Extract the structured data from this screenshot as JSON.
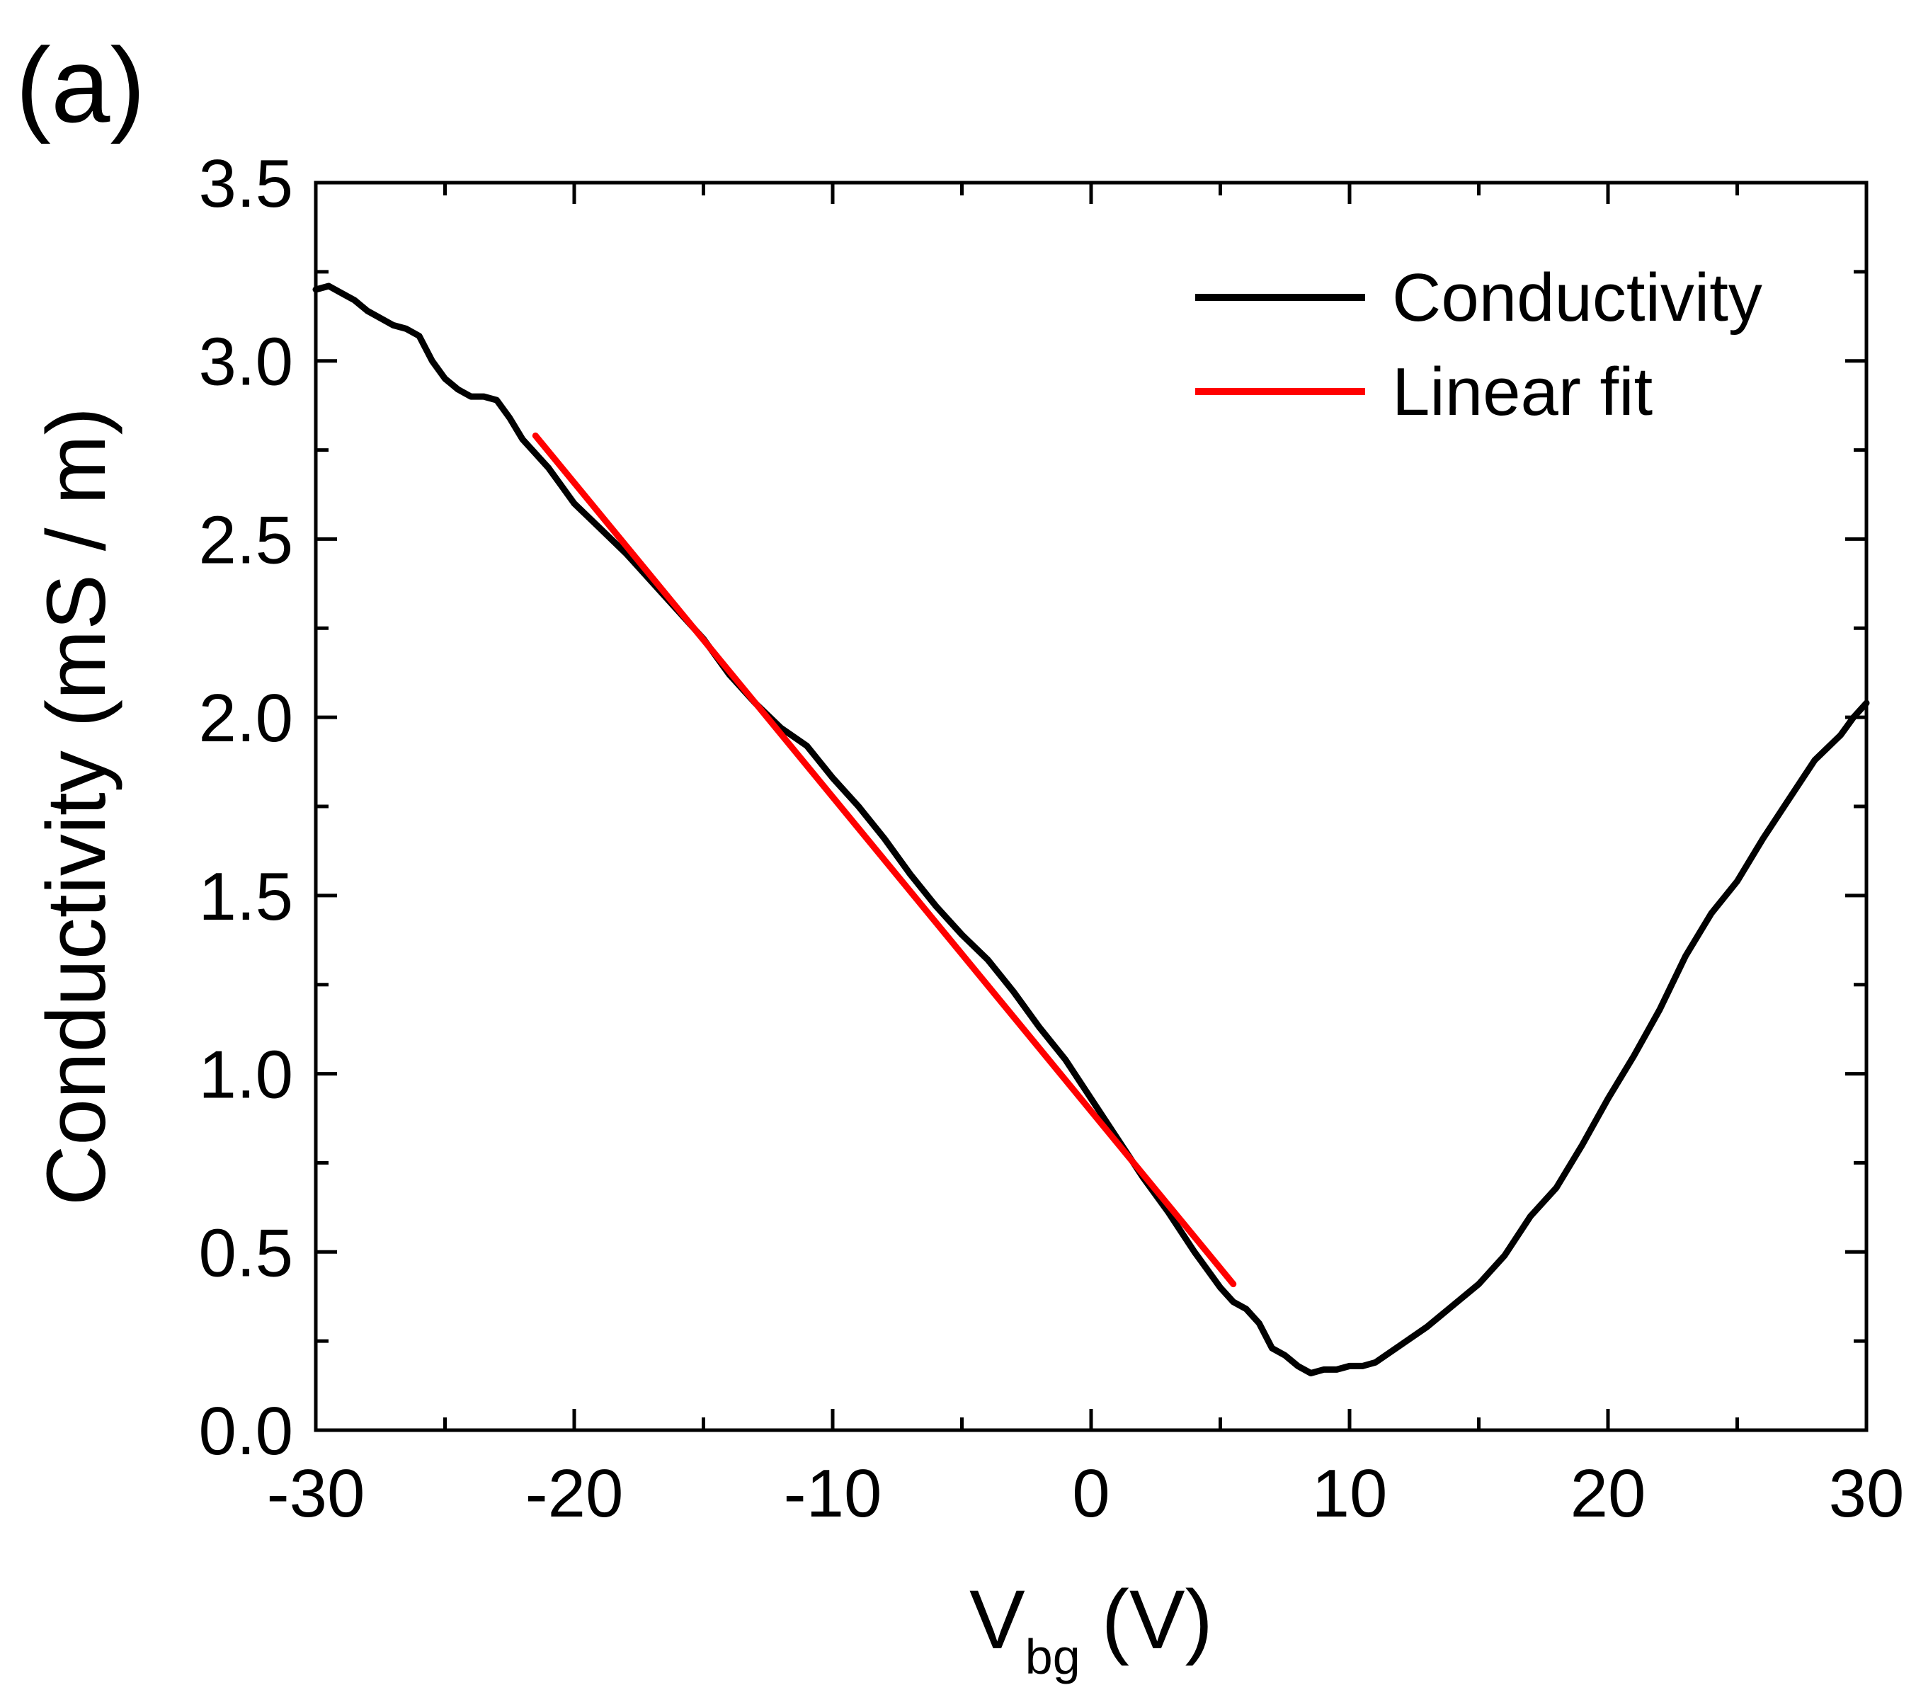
{
  "panel_label": "(a)",
  "chart_data": {
    "type": "line",
    "title": "",
    "xlabel": "V",
    "xlabel_subscript": "bg",
    "xlabel_unit": "(V)",
    "ylabel": "Conductivity (mS / m)",
    "xlim": [
      -30,
      30
    ],
    "ylim": [
      0.0,
      3.5
    ],
    "xticks": [
      -30,
      -20,
      -10,
      0,
      10,
      20,
      30
    ],
    "xtick_labels": [
      "-30",
      "-20",
      "-10",
      "0",
      "10",
      "20",
      "30"
    ],
    "yticks": [
      0.0,
      0.5,
      1.0,
      1.5,
      2.0,
      2.5,
      3.0,
      3.5
    ],
    "ytick_labels": [
      "0.0",
      "0.5",
      "1.0",
      "1.5",
      "2.0",
      "2.5",
      "3.0",
      "3.5"
    ],
    "grid": false,
    "legend_position": "top-right",
    "series": [
      {
        "name": "Conductivity",
        "color": "#000000",
        "x": [
          -30,
          -29.5,
          -29,
          -28.5,
          -28,
          -27.5,
          -27,
          -26.5,
          -26,
          -25.5,
          -25,
          -24.5,
          -24,
          -23.5,
          -23,
          -22.5,
          -22,
          -21.5,
          -21,
          -20.5,
          -20,
          -19,
          -18,
          -17,
          -16,
          -15,
          -14,
          -13,
          -12,
          -11,
          -10,
          -9,
          -8,
          -7,
          -6,
          -5,
          -4,
          -3,
          -2,
          -1,
          0,
          1,
          2,
          3,
          4,
          5,
          5.5,
          6,
          6.5,
          7,
          7.5,
          8,
          8.5,
          9,
          9.5,
          10,
          10.5,
          11,
          12,
          13,
          14,
          15,
          16,
          17,
          18,
          19,
          20,
          21,
          22,
          23,
          24,
          25,
          26,
          27,
          28,
          29,
          29.5,
          30
        ],
        "y": [
          3.2,
          3.21,
          3.19,
          3.17,
          3.14,
          3.12,
          3.1,
          3.09,
          3.07,
          3.0,
          2.95,
          2.92,
          2.9,
          2.9,
          2.89,
          2.84,
          2.78,
          2.74,
          2.7,
          2.65,
          2.6,
          2.53,
          2.46,
          2.38,
          2.3,
          2.22,
          2.12,
          2.04,
          1.97,
          1.92,
          1.83,
          1.75,
          1.66,
          1.56,
          1.47,
          1.39,
          1.32,
          1.23,
          1.13,
          1.04,
          0.93,
          0.82,
          0.71,
          0.61,
          0.5,
          0.4,
          0.36,
          0.34,
          0.3,
          0.23,
          0.21,
          0.18,
          0.16,
          0.17,
          0.17,
          0.18,
          0.18,
          0.19,
          0.24,
          0.29,
          0.35,
          0.41,
          0.49,
          0.6,
          0.68,
          0.8,
          0.93,
          1.05,
          1.18,
          1.33,
          1.45,
          1.54,
          1.66,
          1.77,
          1.88,
          1.95,
          2.0,
          2.04
        ]
      },
      {
        "name": "Linear fit",
        "color": "#ff0000",
        "x": [
          -21.5,
          5.5
        ],
        "y": [
          2.79,
          0.41
        ]
      }
    ]
  }
}
